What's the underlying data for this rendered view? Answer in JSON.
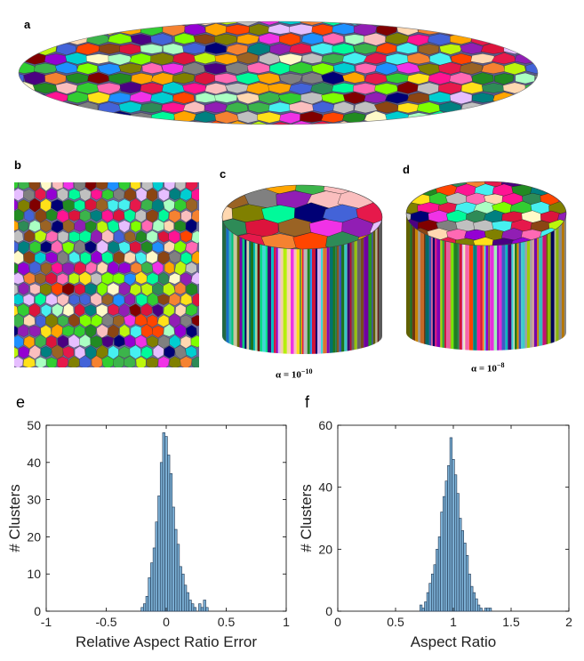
{
  "panels": {
    "a": "a",
    "b": "b",
    "c": "c",
    "d": "d",
    "e": "e",
    "f": "f"
  },
  "captions": {
    "c": "α = 10",
    "c_exp": "−10",
    "d": "α = 10",
    "d_exp": "−8"
  },
  "chart_data": [
    {
      "type": "bar",
      "panel": "e",
      "xlabel": "Relative Aspect Ratio Error",
      "ylabel": "# Clusters",
      "xlim": [
        -1,
        1
      ],
      "ylim": [
        0,
        50
      ],
      "xticks": [
        -1,
        -0.5,
        0,
        0.5,
        1
      ],
      "xtick_labels": [
        "-1",
        "-0.5",
        "0",
        "0.5",
        "1"
      ],
      "yticks": [
        0,
        10,
        20,
        30,
        40,
        50
      ],
      "ytick_labels": [
        "0",
        "10",
        "20",
        "30",
        "40",
        "50"
      ],
      "bin_width": 0.02,
      "x": [
        -0.2,
        -0.18,
        -0.16,
        -0.14,
        -0.12,
        -0.1,
        -0.08,
        -0.06,
        -0.04,
        -0.02,
        0.0,
        0.02,
        0.04,
        0.06,
        0.08,
        0.1,
        0.12,
        0.14,
        0.16,
        0.18,
        0.2,
        0.22,
        0.24,
        0.26,
        0.28,
        0.3,
        0.32,
        0.34
      ],
      "values": [
        1,
        2,
        4,
        9,
        13,
        17,
        24,
        31,
        40,
        48,
        47,
        42,
        37,
        28,
        22,
        18,
        12,
        10,
        7,
        5,
        3,
        2,
        1,
        0,
        2,
        1,
        3,
        1
      ],
      "bar_color": "#7bafd4",
      "edge_color": "#1f3550"
    },
    {
      "type": "bar",
      "panel": "f",
      "xlabel": "Aspect Ratio",
      "ylabel": "# Clusters",
      "xlim": [
        0,
        2
      ],
      "ylim": [
        0,
        60
      ],
      "xticks": [
        0,
        0.5,
        1,
        1.5,
        2
      ],
      "xtick_labels": [
        "0",
        "0.5",
        "1",
        "1.5",
        "2"
      ],
      "yticks": [
        0,
        20,
        40,
        60
      ],
      "ytick_labels": [
        "0",
        "20",
        "40",
        "60"
      ],
      "bin_width": 0.02,
      "x": [
        0.72,
        0.74,
        0.76,
        0.78,
        0.8,
        0.82,
        0.84,
        0.86,
        0.88,
        0.9,
        0.92,
        0.94,
        0.96,
        0.98,
        1.0,
        1.02,
        1.04,
        1.06,
        1.08,
        1.1,
        1.12,
        1.14,
        1.16,
        1.18,
        1.2,
        1.22,
        1.24,
        1.26,
        1.28,
        1.3,
        1.32
      ],
      "values": [
        2,
        1,
        3,
        6,
        9,
        12,
        15,
        20,
        24,
        32,
        37,
        42,
        47,
        56,
        49,
        44,
        38,
        30,
        26,
        22,
        18,
        12,
        8,
        6,
        4,
        2,
        1,
        0,
        1,
        1,
        1
      ],
      "bar_color": "#7bafd4",
      "edge_color": "#1f3550"
    }
  ]
}
